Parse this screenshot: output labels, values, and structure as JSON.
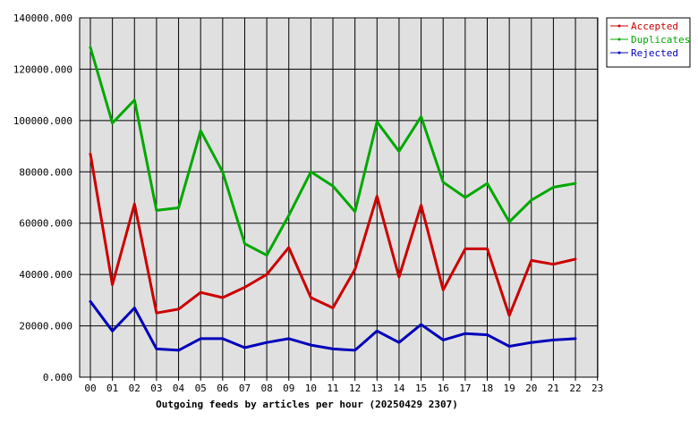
{
  "chart_data": {
    "type": "line",
    "title": "",
    "xlabel": "Outgoing feeds by articles per hour (20250429 2307)",
    "ylabel": "",
    "categories": [
      "00",
      "01",
      "02",
      "03",
      "04",
      "05",
      "06",
      "07",
      "08",
      "09",
      "10",
      "11",
      "12",
      "13",
      "14",
      "15",
      "16",
      "17",
      "18",
      "19",
      "20",
      "21",
      "22",
      "23"
    ],
    "ylim": [
      0,
      140000
    ],
    "yticks": [
      "0.000",
      "20000.000",
      "40000.000",
      "60000.000",
      "80000.000",
      "100000.000",
      "120000.000",
      "140000.000"
    ],
    "grid": true,
    "legend_position": "top-right",
    "series": [
      {
        "name": "Accepted",
        "color": "#cc0000",
        "values": [
          87000,
          36000,
          67500,
          25000,
          26500,
          33000,
          31000,
          35000,
          40000,
          50500,
          31000,
          27000,
          42000,
          70500,
          39000,
          67000,
          34000,
          50000,
          50000,
          24000,
          45500,
          44000,
          46000,
          null
        ]
      },
      {
        "name": "Duplicates",
        "color": "#00a800",
        "values": [
          128500,
          99000,
          108000,
          65000,
          66000,
          96000,
          80000,
          52000,
          47500,
          63000,
          80000,
          74500,
          64500,
          99500,
          88000,
          101500,
          76000,
          70000,
          75500,
          60500,
          69000,
          74000,
          75500,
          null
        ]
      },
      {
        "name": "Rejected",
        "color": "#0000bb",
        "values": [
          29500,
          18000,
          27000,
          11000,
          10500,
          15000,
          15000,
          11500,
          13500,
          15000,
          12500,
          11000,
          10500,
          18000,
          13500,
          20500,
          14500,
          17000,
          16500,
          12000,
          13500,
          14500,
          15000,
          null
        ]
      }
    ]
  }
}
